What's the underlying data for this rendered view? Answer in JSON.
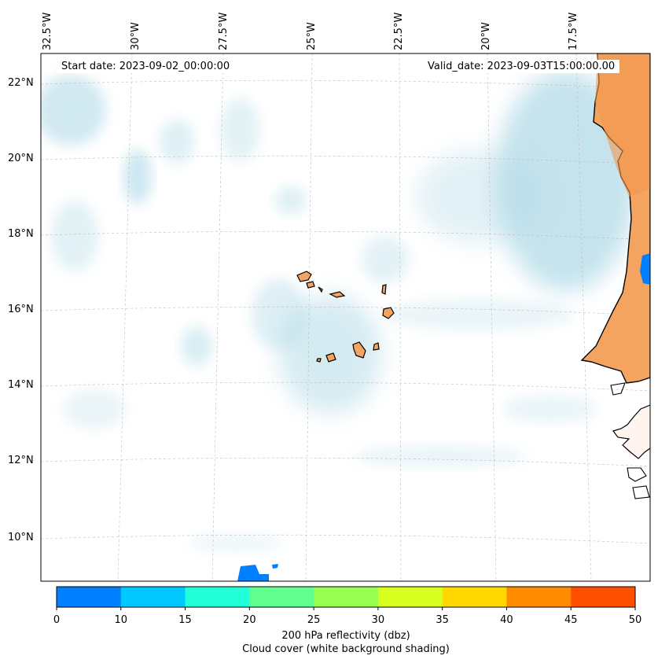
{
  "map": {
    "start_label": "Start date: 2023-09-02_00:00:00",
    "valid_label": "Valid_date: 2023-09-03T15:00:00.00",
    "lon_labels": [
      "32.5°W",
      "30°W",
      "27.5°W",
      "25°W",
      "22.5°W",
      "20°W",
      "17.5°W"
    ],
    "lat_labels": [
      "22°N",
      "20°N",
      "18°N",
      "16°N",
      "14°N",
      "12°N",
      "10°N"
    ],
    "land_color": "#f4a460",
    "cloud_color": "#add8e6",
    "radar_color": "#0080ff",
    "islands": [
      "Santo Antão",
      "São Vicente",
      "Santa Luzia",
      "São Nicolau",
      "Sal",
      "Boa Vista",
      "Maio",
      "Santiago",
      "Fogo",
      "Brava"
    ]
  },
  "colorbar": {
    "ticks": [
      "0",
      "10",
      "15",
      "20",
      "25",
      "30",
      "35",
      "40",
      "45",
      "50"
    ],
    "colors": [
      "#0080ff",
      "#00c8ff",
      "#20ffd8",
      "#60ff90",
      "#98ff50",
      "#d8ff20",
      "#ffd800",
      "#ff8c00",
      "#ff5000"
    ],
    "label_line1": "200 hPa reflectivity (dbz)",
    "label_line2": "Cloud cover (white background shading)"
  }
}
